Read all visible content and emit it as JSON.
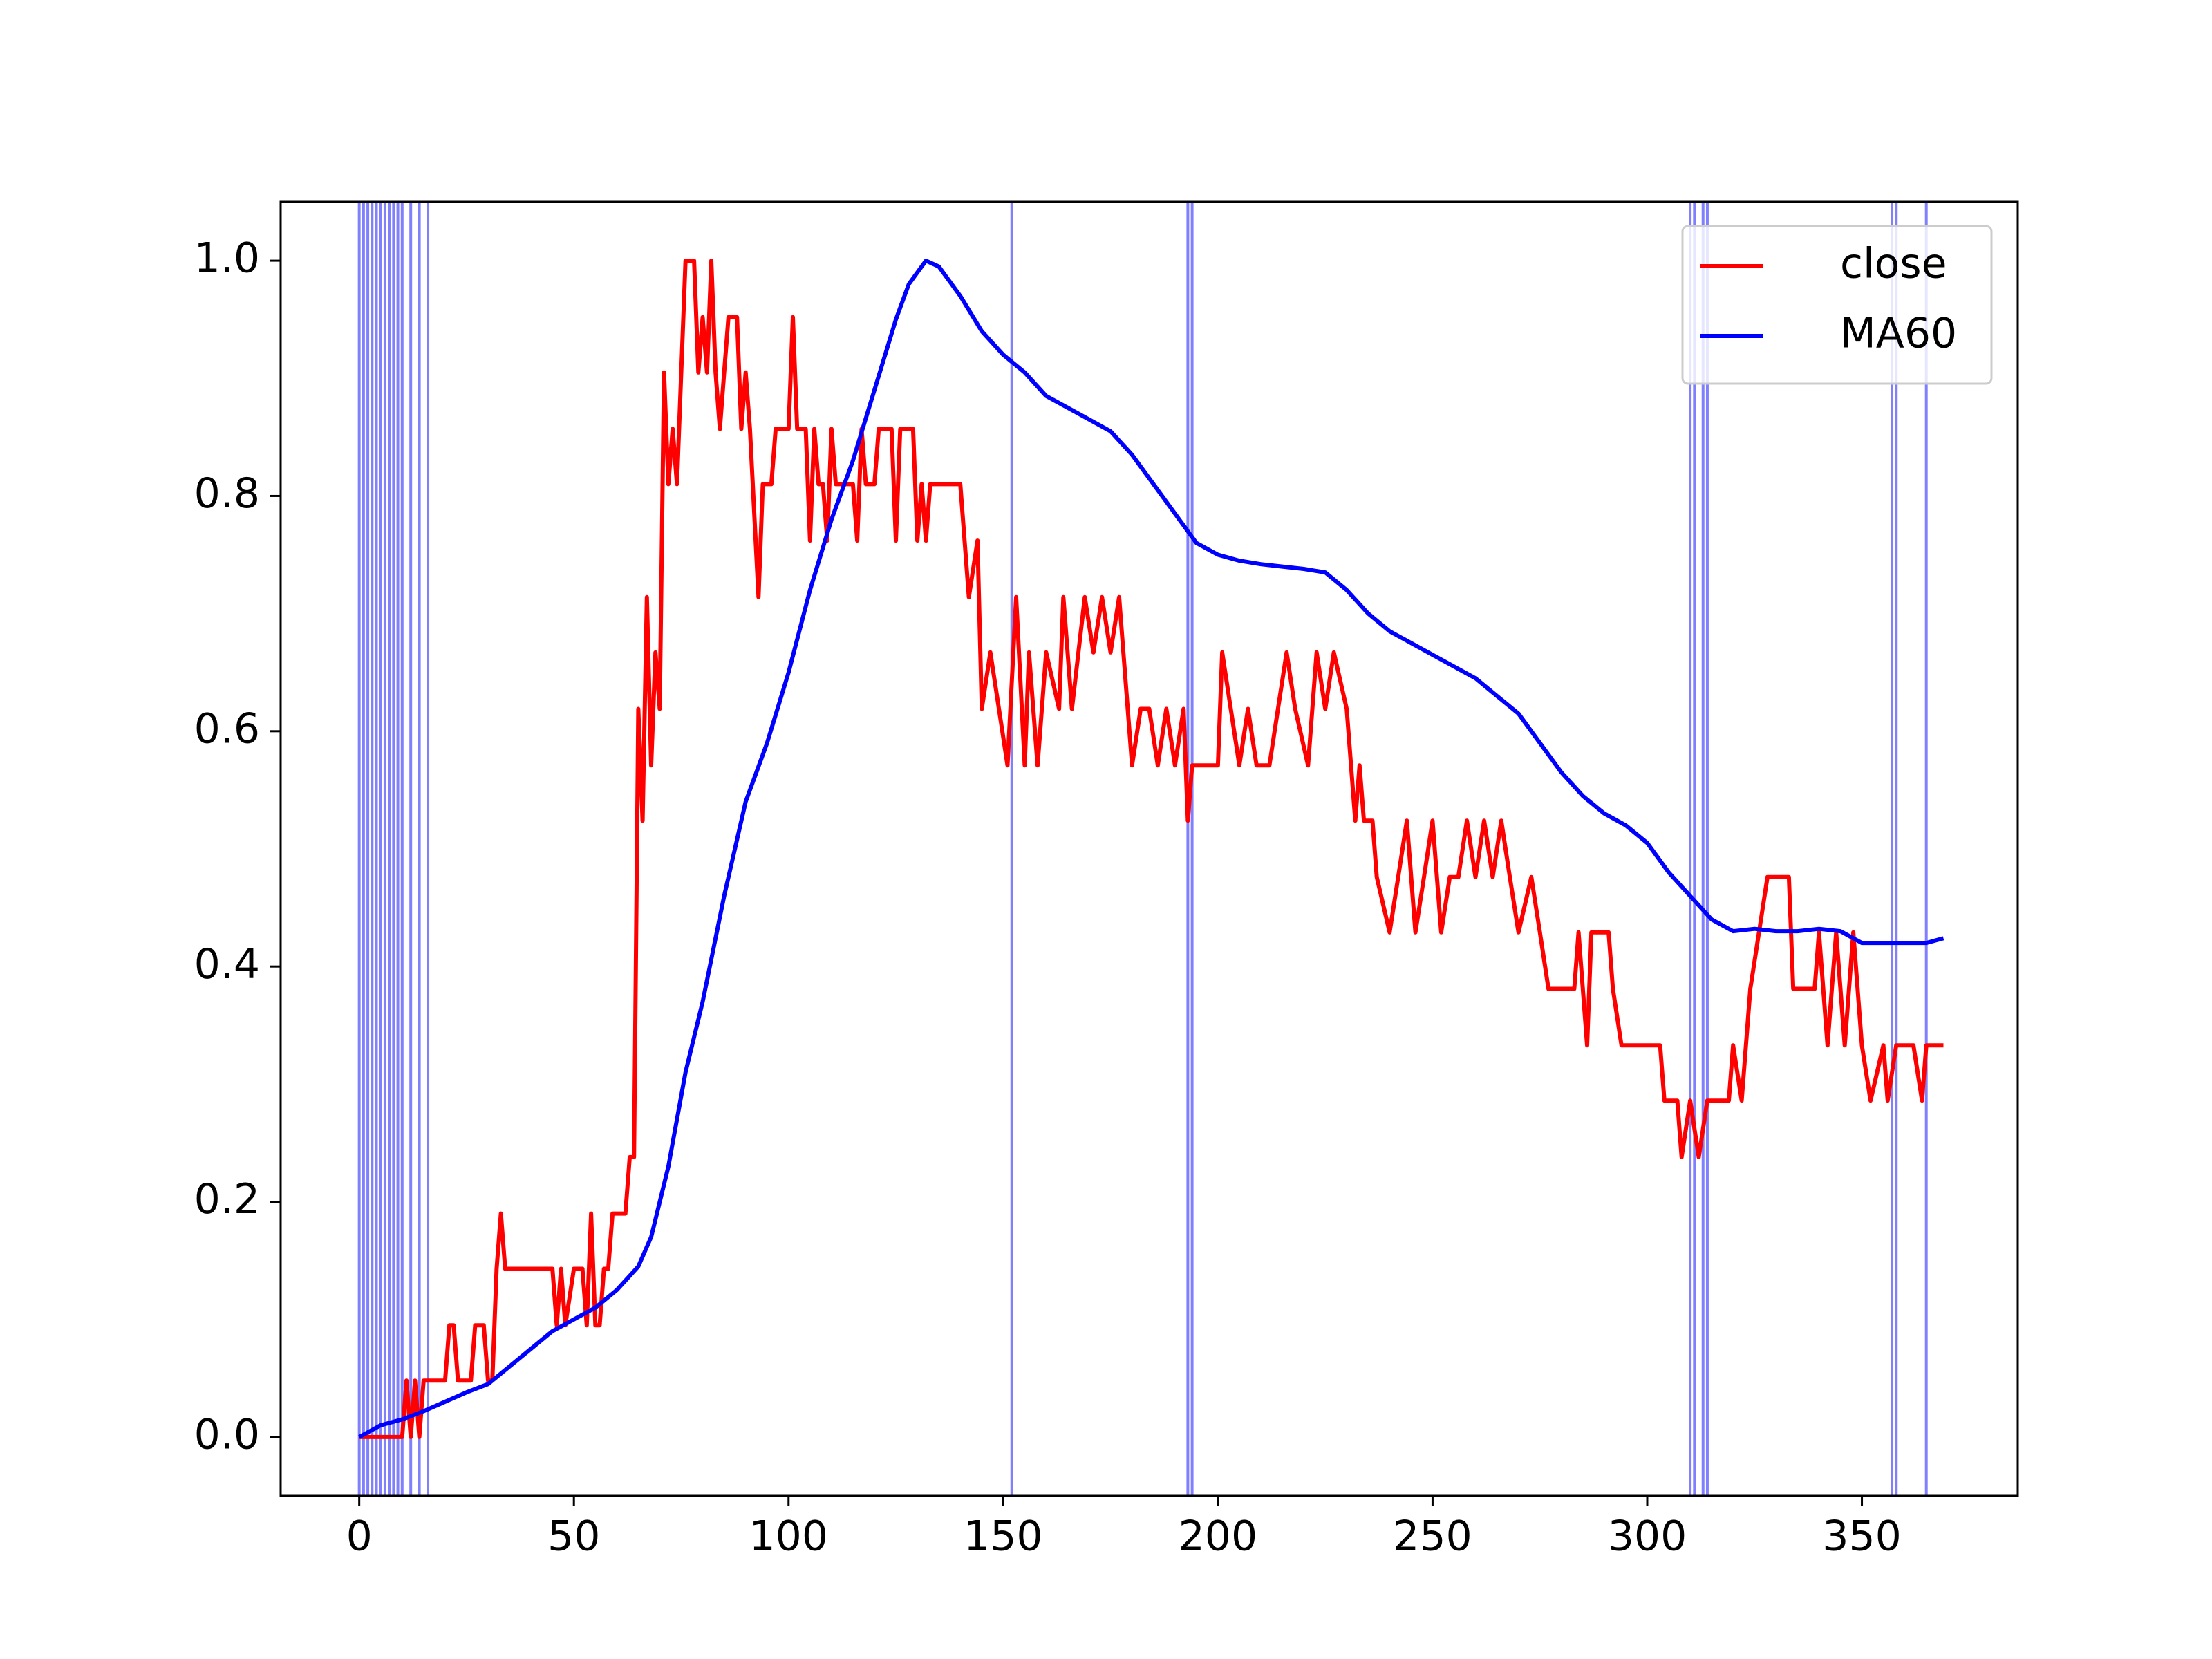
{
  "chart_data": {
    "type": "line",
    "xlim": [
      -18.3,
      386.3
    ],
    "ylim": [
      -0.05,
      1.05
    ],
    "xticks": [
      0,
      50,
      100,
      150,
      200,
      250,
      300,
      350
    ],
    "yticks": [
      {
        "value": 0,
        "label": "0.0"
      },
      0.2,
      0.4,
      0.6,
      0.8,
      {
        "value": 1,
        "label": "1.0"
      }
    ],
    "legend": "upper right",
    "vlines": {
      "color": "#8080ff",
      "x": [
        0,
        1,
        2,
        3,
        4,
        5,
        6,
        7,
        8,
        9,
        10,
        12,
        14,
        16,
        152,
        193,
        194,
        310,
        311,
        313,
        314,
        357,
        358,
        365
      ]
    },
    "series": [
      {
        "name": "close",
        "color": "#ff0000",
        "x": [
          0,
          10,
          11,
          12,
          13,
          14,
          15,
          16,
          20,
          21,
          22,
          23,
          26,
          27,
          29,
          30,
          31,
          32,
          33,
          34,
          45,
          46,
          47,
          48,
          50,
          52,
          53,
          54,
          55,
          56,
          57,
          58,
          59,
          62,
          63,
          64,
          65,
          66,
          67,
          68,
          69,
          70,
          71,
          72,
          73,
          74,
          75,
          76,
          78,
          79,
          80,
          81,
          82,
          83,
          84,
          85,
          86,
          88,
          89,
          90,
          91,
          93,
          94,
          96,
          97,
          100,
          101,
          102,
          104,
          105,
          106,
          107,
          108,
          109,
          110,
          111,
          115,
          116,
          117,
          118,
          120,
          121,
          124,
          125,
          126,
          129,
          130,
          131,
          132,
          133,
          140,
          142,
          144,
          145,
          147,
          149,
          151,
          153,
          155,
          156,
          158,
          160,
          163,
          164,
          166,
          169,
          171,
          173,
          175,
          177,
          180,
          182,
          184,
          186,
          188,
          190,
          192,
          193,
          194,
          200,
          201,
          203,
          205,
          207,
          209,
          212,
          214,
          216,
          218,
          221,
          223,
          225,
          227,
          230,
          232,
          233,
          234,
          236,
          237,
          240,
          242,
          244,
          246,
          248,
          250,
          252,
          254,
          256,
          258,
          260,
          262,
          264,
          266,
          268,
          270,
          273,
          275,
          277,
          283,
          284,
          286,
          287,
          291,
          292,
          294,
          303,
          304,
          307,
          308,
          310,
          312,
          314,
          319,
          320,
          322,
          324,
          328,
          333,
          334,
          339,
          340,
          342,
          344,
          346,
          348,
          350,
          352,
          355,
          356,
          358,
          362,
          364,
          365,
          369
        ],
        "values": [
          0,
          0,
          0.048,
          0,
          0.048,
          0,
          0.048,
          0.048,
          0.048,
          0.095,
          0.095,
          0.048,
          0.048,
          0.095,
          0.095,
          0.048,
          0.048,
          0.143,
          0.19,
          0.143,
          0.143,
          0.095,
          0.143,
          0.095,
          0.143,
          0.143,
          0.095,
          0.19,
          0.095,
          0.095,
          0.143,
          0.143,
          0.19,
          0.19,
          0.238,
          0.238,
          0.619,
          0.524,
          0.714,
          0.571,
          0.667,
          0.619,
          0.905,
          0.81,
          0.857,
          0.81,
          0.905,
          1.0,
          1.0,
          0.905,
          0.952,
          0.905,
          1.0,
          0.905,
          0.857,
          0.905,
          0.952,
          0.952,
          0.857,
          0.905,
          0.857,
          0.714,
          0.81,
          0.81,
          0.857,
          0.857,
          0.952,
          0.857,
          0.857,
          0.762,
          0.857,
          0.81,
          0.81,
          0.762,
          0.857,
          0.81,
          0.81,
          0.762,
          0.857,
          0.81,
          0.81,
          0.857,
          0.857,
          0.762,
          0.857,
          0.857,
          0.762,
          0.81,
          0.762,
          0.81,
          0.81,
          0.714,
          0.762,
          0.619,
          0.667,
          0.619,
          0.571,
          0.714,
          0.571,
          0.667,
          0.571,
          0.667,
          0.619,
          0.714,
          0.619,
          0.714,
          0.667,
          0.714,
          0.667,
          0.714,
          0.571,
          0.619,
          0.619,
          0.571,
          0.619,
          0.571,
          0.619,
          0.524,
          0.571,
          0.571,
          0.667,
          0.619,
          0.571,
          0.619,
          0.571,
          0.571,
          0.619,
          0.667,
          0.619,
          0.571,
          0.667,
          0.619,
          0.667,
          0.619,
          0.524,
          0.571,
          0.524,
          0.524,
          0.476,
          0.429,
          0.476,
          0.524,
          0.429,
          0.476,
          0.524,
          0.429,
          0.476,
          0.476,
          0.524,
          0.476,
          0.524,
          0.476,
          0.524,
          0.476,
          0.429,
          0.476,
          0.429,
          0.381,
          0.381,
          0.429,
          0.333,
          0.429,
          0.429,
          0.381,
          0.333,
          0.333,
          0.286,
          0.286,
          0.238,
          0.286,
          0.238,
          0.286,
          0.286,
          0.333,
          0.286,
          0.381,
          0.476,
          0.476,
          0.381,
          0.381,
          0.429,
          0.333,
          0.429,
          0.333,
          0.429,
          0.333,
          0.286,
          0.333,
          0.286,
          0.333,
          0.333,
          0.286,
          0.333,
          0.333
        ]
      },
      {
        "name": "MA60",
        "color": "#0000ff",
        "x": [
          0,
          5,
          10,
          15,
          20,
          25,
          30,
          35,
          40,
          45,
          50,
          55,
          60,
          65,
          68,
          72,
          76,
          80,
          85,
          90,
          95,
          100,
          105,
          110,
          115,
          120,
          125,
          128,
          132,
          135,
          140,
          145,
          150,
          155,
          160,
          165,
          170,
          175,
          180,
          185,
          190,
          195,
          200,
          205,
          210,
          215,
          220,
          225,
          230,
          235,
          240,
          245,
          250,
          255,
          260,
          265,
          270,
          275,
          280,
          285,
          290,
          295,
          300,
          305,
          310,
          315,
          320,
          325,
          330,
          335,
          340,
          345,
          350,
          355,
          360,
          365,
          369
        ],
        "values": [
          0,
          0.01,
          0.015,
          0.022,
          0.03,
          0.038,
          0.045,
          0.06,
          0.075,
          0.09,
          0.1,
          0.11,
          0.125,
          0.145,
          0.17,
          0.23,
          0.31,
          0.37,
          0.46,
          0.54,
          0.59,
          0.65,
          0.72,
          0.78,
          0.83,
          0.89,
          0.95,
          0.98,
          1.0,
          0.995,
          0.97,
          0.94,
          0.92,
          0.905,
          0.885,
          0.875,
          0.865,
          0.855,
          0.835,
          0.81,
          0.785,
          0.76,
          0.75,
          0.745,
          0.742,
          0.74,
          0.738,
          0.735,
          0.72,
          0.7,
          0.685,
          0.675,
          0.665,
          0.655,
          0.645,
          0.63,
          0.615,
          0.59,
          0.565,
          0.545,
          0.53,
          0.52,
          0.505,
          0.48,
          0.46,
          0.44,
          0.43,
          0.432,
          0.43,
          0.43,
          0.432,
          0.43,
          0.42,
          0.42,
          0.42,
          0.42,
          0.424
        ]
      }
    ]
  }
}
